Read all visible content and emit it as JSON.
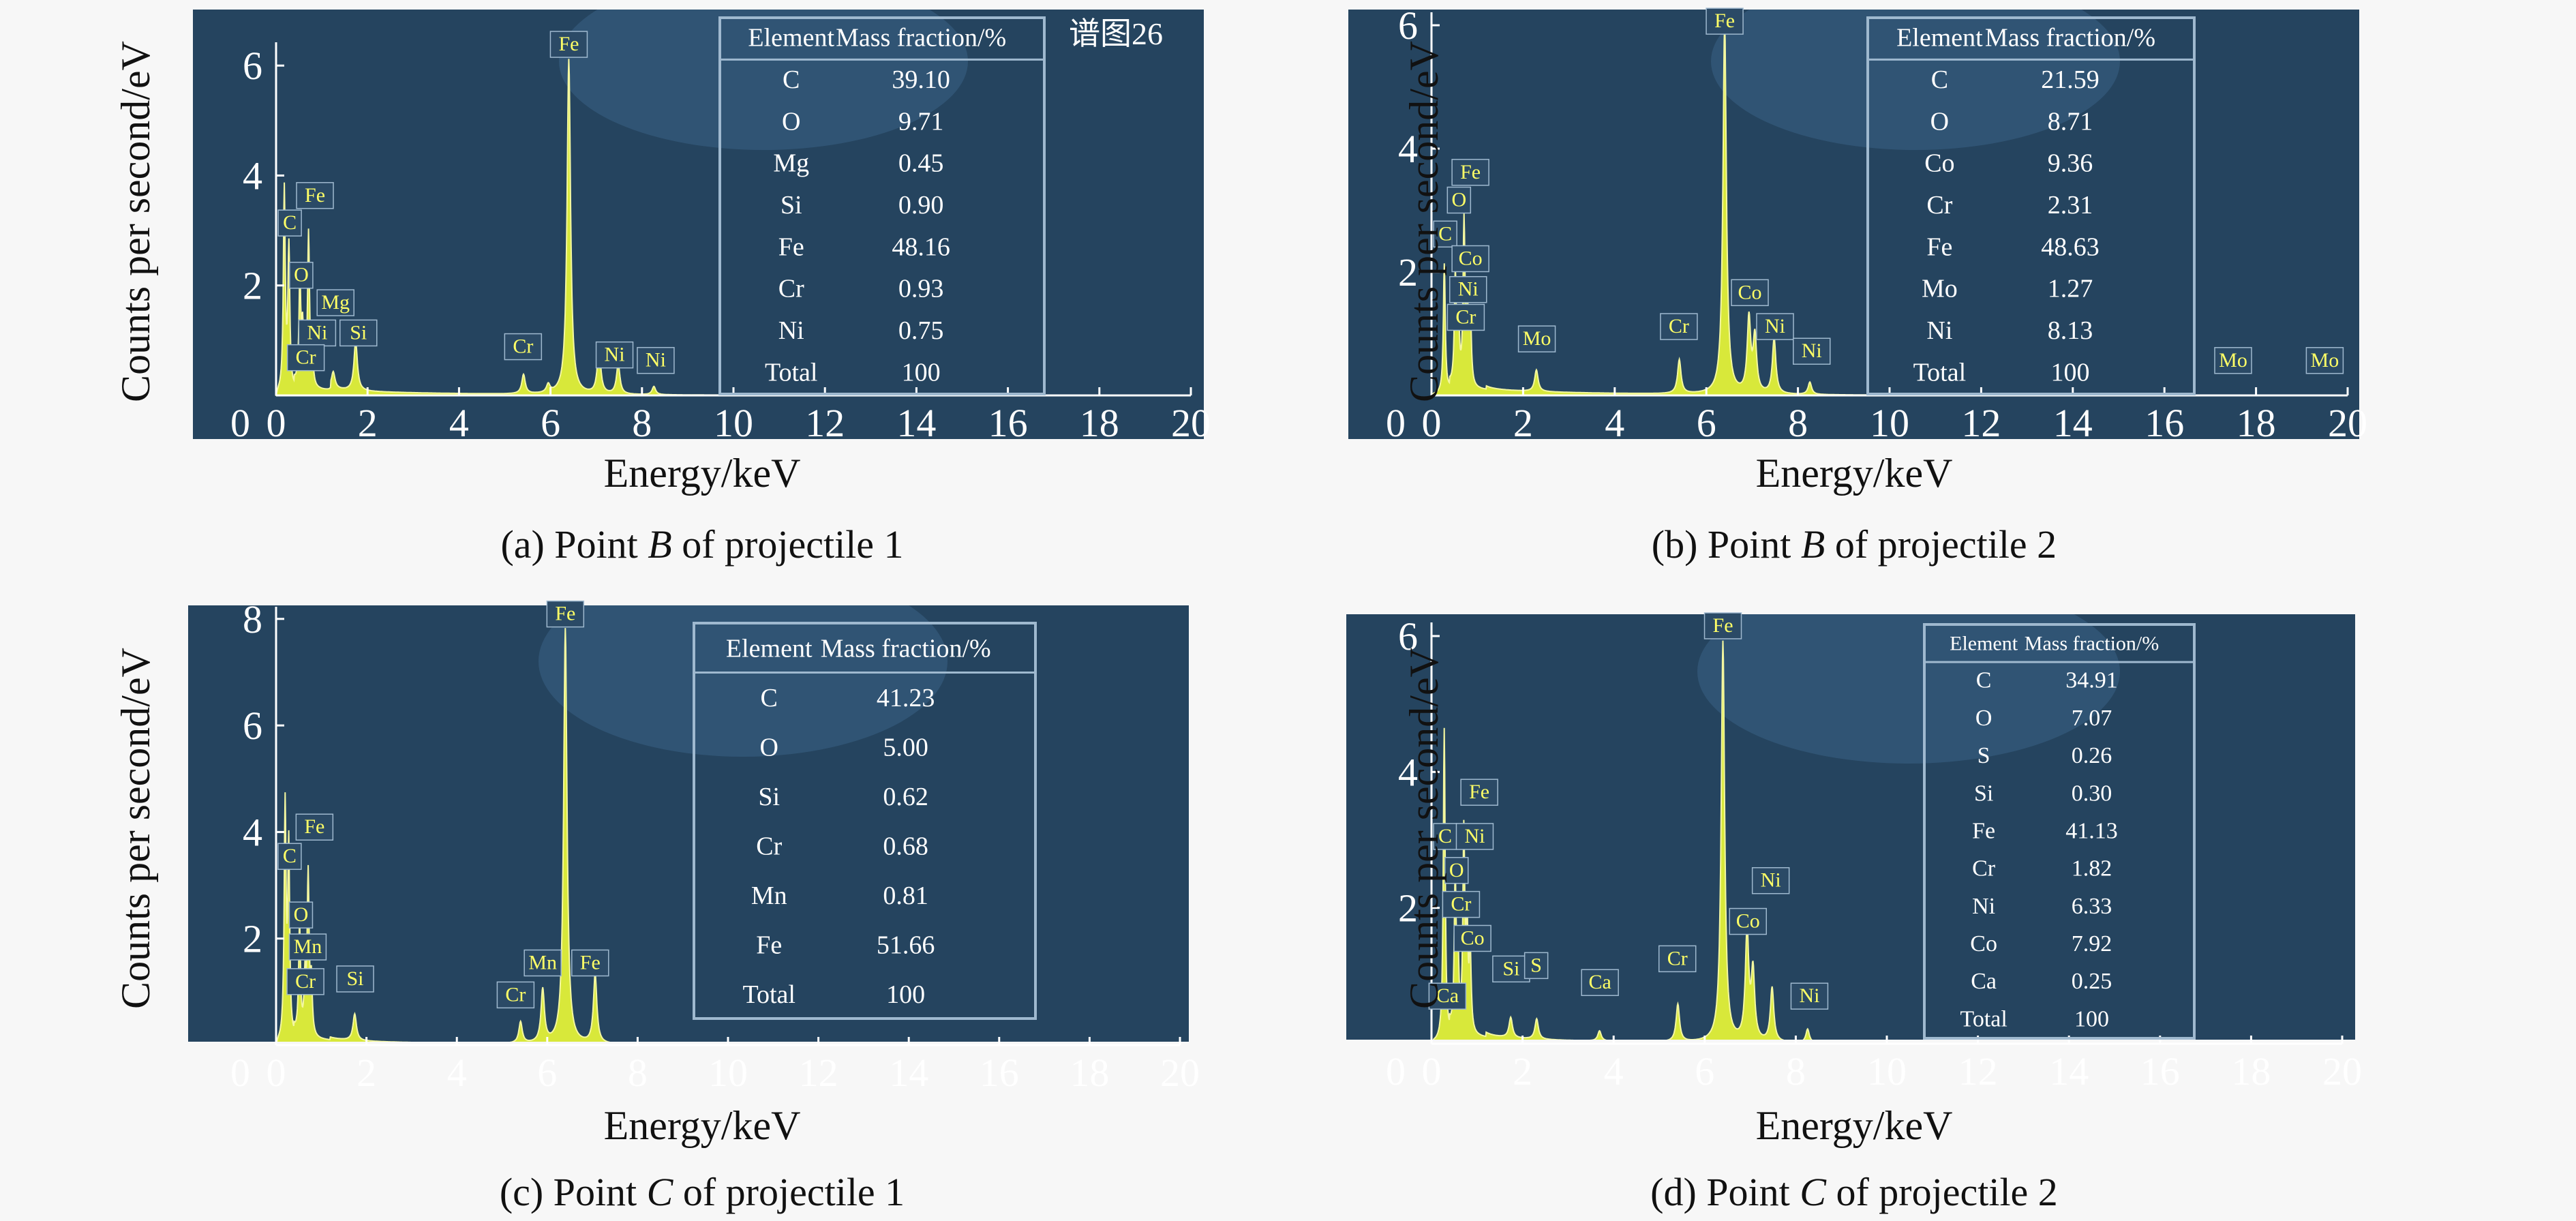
{
  "colors": {
    "plot_background": "#25445f",
    "plot_glare": "#3b6385",
    "spectrum": "#d8e83a",
    "spectrum_edge": "#f4f7a0",
    "axis": "#ffffff",
    "table_border": "#9fb9cf",
    "tag_fill": "#2b4a66",
    "tag_border": "#9fb9cf",
    "tag_text": "#ffff66"
  },
  "chart_data": [
    {
      "type": "line",
      "id": "a",
      "caption": {
        "prefix": "(a) Point ",
        "point": "B",
        "suffix": " of projectile 1"
      },
      "xlabel": "Energy/keV",
      "ylabel": "Counts per second/eV",
      "xlim": [
        0,
        20
      ],
      "ylim": [
        0,
        6.3
      ],
      "x_ticks": [
        0,
        2,
        4,
        6,
        8,
        10,
        12,
        14,
        16,
        18,
        20
      ],
      "y_ticks": [
        2,
        4,
        6
      ],
      "watermark": "谱图26",
      "table": {
        "headers": [
          "Element",
          "Mass fraction/%"
        ],
        "rows": [
          [
            "C",
            "39.10"
          ],
          [
            "O",
            "9.71"
          ],
          [
            "Mg",
            "0.45"
          ],
          [
            "Si",
            "0.90"
          ],
          [
            "Fe",
            "48.16"
          ],
          [
            "Cr",
            "0.93"
          ],
          [
            "Ni",
            "0.75"
          ],
          [
            "Total",
            "100"
          ]
        ]
      },
      "peaks": [
        {
          "x": 0.18,
          "y": 3.7
        },
        {
          "x": 0.28,
          "y": 2.6
        },
        {
          "x": 0.52,
          "y": 1.9
        },
        {
          "x": 0.58,
          "y": 1.0
        },
        {
          "x": 0.71,
          "y": 2.8
        },
        {
          "x": 0.79,
          "y": 0.6
        },
        {
          "x": 1.25,
          "y": 0.3
        },
        {
          "x": 1.74,
          "y": 0.9
        },
        {
          "x": 5.41,
          "y": 0.35
        },
        {
          "x": 5.95,
          "y": 0.15
        },
        {
          "x": 6.4,
          "y": 6.1
        },
        {
          "x": 7.06,
          "y": 0.85
        },
        {
          "x": 7.48,
          "y": 0.55
        },
        {
          "x": 8.26,
          "y": 0.15
        }
      ],
      "labels": [
        {
          "text": "Fe",
          "x": 6.4,
          "y": 6.2
        },
        {
          "text": "Fe",
          "x": 0.85,
          "y": 3.45
        },
        {
          "text": "C",
          "x": 0.3,
          "y": 2.95
        },
        {
          "text": "O",
          "x": 0.55,
          "y": 2.0
        },
        {
          "text": "Mg",
          "x": 1.3,
          "y": 1.5
        },
        {
          "text": "Ni",
          "x": 0.9,
          "y": 0.95
        },
        {
          "text": "Si",
          "x": 1.8,
          "y": 0.95
        },
        {
          "text": "Cr",
          "x": 0.65,
          "y": 0.5
        },
        {
          "text": "Cr",
          "x": 5.4,
          "y": 0.7
        },
        {
          "text": "Ni",
          "x": 7.4,
          "y": 0.55
        },
        {
          "text": "Ni",
          "x": 8.3,
          "y": 0.45
        }
      ]
    },
    {
      "type": "line",
      "id": "b",
      "caption": {
        "prefix": "(b) Point ",
        "point": "B",
        "suffix": " of projectile 2"
      },
      "xlabel": "Energy/keV",
      "ylabel": "Counts per second/eV",
      "xlim": [
        0,
        20
      ],
      "ylim": [
        0,
        6.1
      ],
      "x_ticks": [
        0,
        2,
        4,
        6,
        8,
        10,
        12,
        14,
        16,
        18,
        20
      ],
      "y_ticks": [
        2,
        4,
        6
      ],
      "watermark": "",
      "table": {
        "headers": [
          "Element",
          "Mass fraction/%"
        ],
        "rows": [
          [
            "C",
            "21.59"
          ],
          [
            "O",
            "8.71"
          ],
          [
            "Co",
            "9.36"
          ],
          [
            "Cr",
            "2.31"
          ],
          [
            "Fe",
            "48.63"
          ],
          [
            "Mo",
            "1.27"
          ],
          [
            "Ni",
            "8.13"
          ],
          [
            "Total",
            "100"
          ]
        ]
      },
      "peaks": [
        {
          "x": 0.28,
          "y": 2.1
        },
        {
          "x": 0.52,
          "y": 1.8
        },
        {
          "x": 0.59,
          "y": 1.0
        },
        {
          "x": 0.71,
          "y": 2.6
        },
        {
          "x": 0.78,
          "y": 1.3
        },
        {
          "x": 0.85,
          "y": 1.1
        },
        {
          "x": 2.29,
          "y": 0.35
        },
        {
          "x": 5.41,
          "y": 0.55
        },
        {
          "x": 6.4,
          "y": 6.0
        },
        {
          "x": 6.93,
          "y": 1.2
        },
        {
          "x": 7.06,
          "y": 0.9
        },
        {
          "x": 7.48,
          "y": 0.9
        },
        {
          "x": 8.26,
          "y": 0.2
        }
      ],
      "labels": [
        {
          "text": "Fe",
          "x": 6.4,
          "y": 5.9
        },
        {
          "text": "Fe",
          "x": 0.85,
          "y": 3.45
        },
        {
          "text": "O",
          "x": 0.6,
          "y": 3.0
        },
        {
          "text": "C",
          "x": 0.3,
          "y": 2.45
        },
        {
          "text": "Co",
          "x": 0.85,
          "y": 2.05
        },
        {
          "text": "Ni",
          "x": 0.8,
          "y": 1.55
        },
        {
          "text": "Cr",
          "x": 0.75,
          "y": 1.1
        },
        {
          "text": "Mo",
          "x": 2.3,
          "y": 0.75
        },
        {
          "text": "Cr",
          "x": 5.4,
          "y": 0.95
        },
        {
          "text": "Co",
          "x": 6.95,
          "y": 1.5
        },
        {
          "text": "Ni",
          "x": 7.5,
          "y": 0.95
        },
        {
          "text": "Ni",
          "x": 8.3,
          "y": 0.55
        },
        {
          "text": "Mo",
          "x": 17.5,
          "y": 0.4
        },
        {
          "text": "Mo",
          "x": 19.5,
          "y": 0.4
        }
      ]
    },
    {
      "type": "line",
      "id": "c",
      "caption": {
        "prefix": "(c) Point ",
        "point": "C",
        "suffix": " of projectile 1"
      },
      "xlabel": "Energy/keV",
      "ylabel": "Counts per second/eV",
      "xlim": [
        0,
        20
      ],
      "ylim": [
        0,
        8.1
      ],
      "x_ticks": [
        0,
        2,
        4,
        6,
        8,
        10,
        12,
        14,
        16,
        18,
        20
      ],
      "y_ticks": [
        2,
        4,
        6,
        8
      ],
      "watermark": "",
      "table": {
        "headers": [
          "Element",
          "Mass fraction/%"
        ],
        "rows": [
          [
            "C",
            "41.23"
          ],
          [
            "O",
            "5.00"
          ],
          [
            "Si",
            "0.62"
          ],
          [
            "Cr",
            "0.68"
          ],
          [
            "Mn",
            "0.81"
          ],
          [
            "Fe",
            "51.66"
          ],
          [
            "Total",
            "100"
          ]
        ]
      },
      "peaks": [
        {
          "x": 0.2,
          "y": 4.4
        },
        {
          "x": 0.28,
          "y": 3.6
        },
        {
          "x": 0.52,
          "y": 2.1
        },
        {
          "x": 0.64,
          "y": 1.0
        },
        {
          "x": 0.71,
          "y": 3.0
        },
        {
          "x": 0.78,
          "y": 1.0
        },
        {
          "x": 1.74,
          "y": 0.5
        },
        {
          "x": 5.41,
          "y": 0.4
        },
        {
          "x": 5.9,
          "y": 1.0
        },
        {
          "x": 6.4,
          "y": 7.8
        },
        {
          "x": 7.06,
          "y": 1.3
        }
      ],
      "labels": [
        {
          "text": "Fe",
          "x": 6.4,
          "y": 7.9
        },
        {
          "text": "Fe",
          "x": 0.85,
          "y": 3.9
        },
        {
          "text": "C",
          "x": 0.3,
          "y": 3.35
        },
        {
          "text": "O",
          "x": 0.55,
          "y": 2.25
        },
        {
          "text": "Mn",
          "x": 0.7,
          "y": 1.65
        },
        {
          "text": "Cr",
          "x": 0.65,
          "y": 1.0
        },
        {
          "text": "Si",
          "x": 1.75,
          "y": 1.05
        },
        {
          "text": "Cr",
          "x": 5.3,
          "y": 0.75
        },
        {
          "text": "Mn",
          "x": 5.9,
          "y": 1.35
        },
        {
          "text": "Fe",
          "x": 6.95,
          "y": 1.35
        }
      ]
    },
    {
      "type": "line",
      "id": "d",
      "caption": {
        "prefix": "(d) Point ",
        "point": "C",
        "suffix": " of projectile 2"
      },
      "xlabel": "Energy/keV",
      "ylabel": "Counts per second/eV",
      "xlim": [
        0,
        20
      ],
      "ylim": [
        0,
        6.1
      ],
      "x_ticks": [
        0,
        2,
        4,
        6,
        8,
        10,
        12,
        14,
        16,
        18,
        20
      ],
      "y_ticks": [
        2,
        4,
        6
      ],
      "watermark": "",
      "table": {
        "headers": [
          "Element",
          "Mass fraction/%"
        ],
        "rows": [
          [
            "C",
            "34.91"
          ],
          [
            "O",
            "7.07"
          ],
          [
            "S",
            "0.26"
          ],
          [
            "Si",
            "0.30"
          ],
          [
            "Fe",
            "41.13"
          ],
          [
            "Cr",
            "1.82"
          ],
          [
            "Ni",
            "6.33"
          ],
          [
            "Co",
            "7.92"
          ],
          [
            "Ca",
            "0.25"
          ],
          [
            "Total",
            "100"
          ]
        ]
      },
      "peaks": [
        {
          "x": 0.28,
          "y": 4.6
        },
        {
          "x": 0.52,
          "y": 2.2
        },
        {
          "x": 0.58,
          "y": 1.1
        },
        {
          "x": 0.71,
          "y": 2.9
        },
        {
          "x": 0.78,
          "y": 1.5
        },
        {
          "x": 0.85,
          "y": 1.2
        },
        {
          "x": 1.74,
          "y": 0.3
        },
        {
          "x": 2.31,
          "y": 0.3
        },
        {
          "x": 3.69,
          "y": 0.15
        },
        {
          "x": 5.41,
          "y": 0.55
        },
        {
          "x": 6.4,
          "y": 5.9
        },
        {
          "x": 6.93,
          "y": 1.6
        },
        {
          "x": 7.06,
          "y": 1.0
        },
        {
          "x": 7.48,
          "y": 0.8
        },
        {
          "x": 8.26,
          "y": 0.2
        }
      ],
      "labels": [
        {
          "text": "Fe",
          "x": 6.4,
          "y": 6.0
        },
        {
          "text": "Fe",
          "x": 1.05,
          "y": 3.55
        },
        {
          "text": "C",
          "x": 0.3,
          "y": 2.9
        },
        {
          "text": "Ni",
          "x": 0.95,
          "y": 2.9
        },
        {
          "text": "O",
          "x": 0.55,
          "y": 2.4
        },
        {
          "text": "Cr",
          "x": 0.65,
          "y": 1.9
        },
        {
          "text": "Co",
          "x": 0.9,
          "y": 1.4
        },
        {
          "text": "Ca",
          "x": 0.35,
          "y": 0.55
        },
        {
          "text": "Si",
          "x": 1.75,
          "y": 0.95
        },
        {
          "text": "S",
          "x": 2.3,
          "y": 1.0
        },
        {
          "text": "Ca",
          "x": 3.7,
          "y": 0.75
        },
        {
          "text": "Cr",
          "x": 5.4,
          "y": 1.1
        },
        {
          "text": "Co",
          "x": 6.95,
          "y": 1.65
        },
        {
          "text": "Ni",
          "x": 7.45,
          "y": 2.25
        },
        {
          "text": "Ni",
          "x": 8.3,
          "y": 0.55
        }
      ]
    }
  ]
}
